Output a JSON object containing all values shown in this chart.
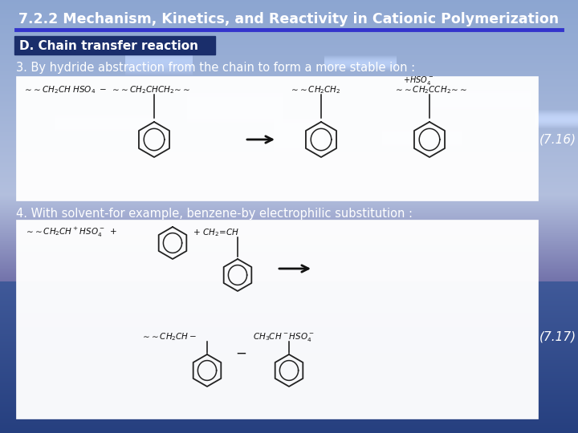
{
  "title": "7.2.2 Mechanism, Kinetics, and Reactivity in Cationic Polymerization",
  "title_color": "#ffffff",
  "title_fontsize": 12.5,
  "title_bold": true,
  "header_label": "D. Chain transfer reaction",
  "header_bg": "#1a2e6b",
  "header_text_color": "#ffffff",
  "header_fontsize": 11,
  "text3": "3. By hydride abstraction from the chain to form a more stable ion :",
  "text4": "4. With solvent-for example, benzene-by electrophilic substitution :",
  "text_color": "#ffffff",
  "text_fontsize": 10.5,
  "eq_label1": "(7.16)",
  "eq_label2": "(7.17)",
  "eq_fontsize": 11,
  "benzene_color": "#222222",
  "chem_text_color": "#111111",
  "chem_fontsize": 7.5,
  "arrow_color": "#111111",
  "underline_color": "#3333cc",
  "box_edge_color": "#bbbbbb"
}
